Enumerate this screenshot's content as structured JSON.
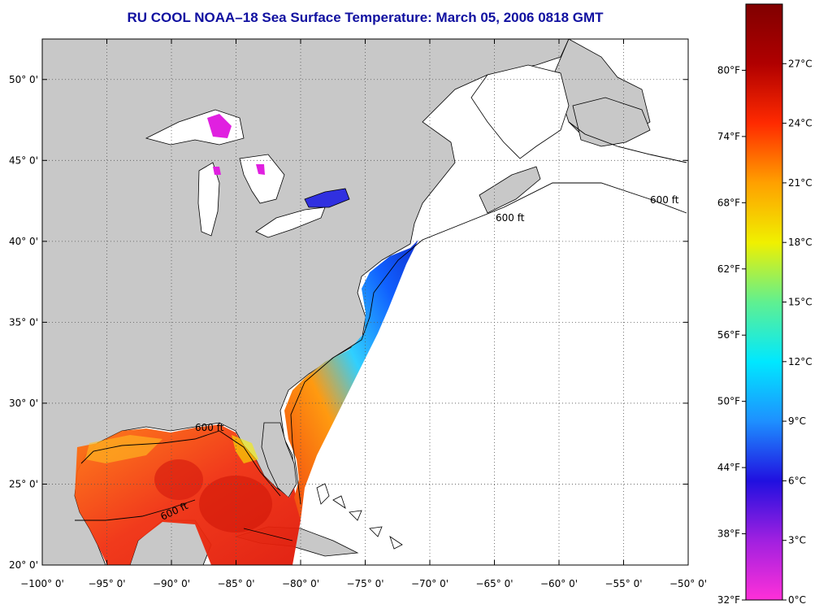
{
  "title": "RU COOL  NOAA–18  Sea Surface Temperature:  March 05, 2006 0818 GMT",
  "map": {
    "lon_range": [
      -100,
      -50
    ],
    "lat_range": [
      20,
      52.5
    ],
    "lon_ticks": [
      {
        "value": -100,
        "label": "−100° 0'"
      },
      {
        "value": -95,
        "label": "−95° 0'"
      },
      {
        "value": -90,
        "label": "−90° 0'"
      },
      {
        "value": -85,
        "label": "−85° 0'"
      },
      {
        "value": -80,
        "label": "−80° 0'"
      },
      {
        "value": -75,
        "label": "−75° 0'"
      },
      {
        "value": -70,
        "label": "−70° 0'"
      },
      {
        "value": -65,
        "label": "−65° 0'"
      },
      {
        "value": -60,
        "label": "−60° 0'"
      },
      {
        "value": -55,
        "label": "−55° 0'"
      },
      {
        "value": -50,
        "label": "−50° 0'"
      }
    ],
    "lat_ticks": [
      {
        "value": 20,
        "label": "20° 0'"
      },
      {
        "value": 25,
        "label": "25° 0'"
      },
      {
        "value": 30,
        "label": "30° 0'"
      },
      {
        "value": 35,
        "label": "35° 0'"
      },
      {
        "value": 40,
        "label": "40° 0'"
      },
      {
        "value": 45,
        "label": "45° 0'"
      },
      {
        "value": 50,
        "label": "50° 0'"
      }
    ],
    "contour_label": "600 ft",
    "colors": {
      "land": "#c8c8c8",
      "ocean_nodata": "#ffffff",
      "gridline": "#555555",
      "warm": "#e8200a",
      "cold": "#1040e0",
      "lake_ice": "#e020e0"
    }
  },
  "colorbar": {
    "range_c": [
      0,
      30
    ],
    "celsius_ticks": [
      {
        "value": 27,
        "label": "27°C"
      },
      {
        "value": 24,
        "label": "24°C"
      },
      {
        "value": 21,
        "label": "21°C"
      },
      {
        "value": 18,
        "label": "18°C"
      },
      {
        "value": 15,
        "label": "15°C"
      },
      {
        "value": 12,
        "label": "12°C"
      },
      {
        "value": 9,
        "label": "9°C"
      },
      {
        "value": 6,
        "label": "6°C"
      },
      {
        "value": 3,
        "label": "3°C"
      },
      {
        "value": 0,
        "label": "0°C"
      }
    ],
    "fahrenheit_ticks": [
      {
        "value": 80,
        "label": "80°F"
      },
      {
        "value": 74,
        "label": "74°F"
      },
      {
        "value": 68,
        "label": "68°F"
      },
      {
        "value": 62,
        "label": "62°F"
      },
      {
        "value": 56,
        "label": "56°F"
      },
      {
        "value": 50,
        "label": "50°F"
      },
      {
        "value": 44,
        "label": "44°F"
      },
      {
        "value": 38,
        "label": "38°F"
      },
      {
        "value": 32,
        "label": "32°F"
      }
    ],
    "stops": [
      "#ff30d8",
      "#a020e0",
      "#2010e0",
      "#1e90ff",
      "#00e8ff",
      "#60f090",
      "#f0f000",
      "#ffa000",
      "#ff2a00",
      "#b00000",
      "#800000"
    ]
  }
}
